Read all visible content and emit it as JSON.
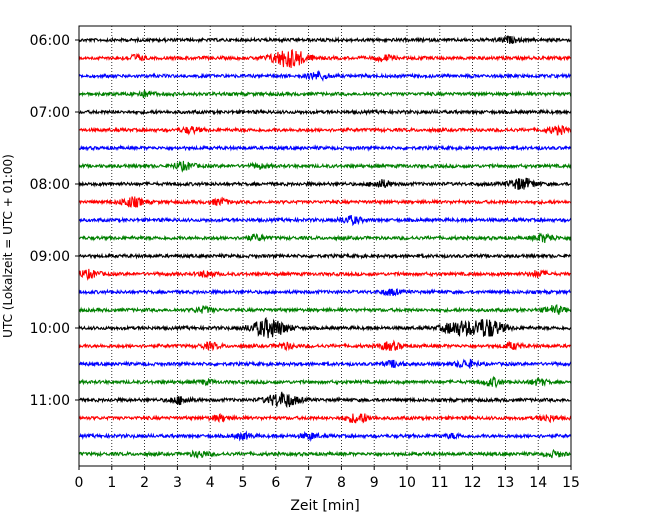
{
  "chart_data": {
    "type": "line",
    "title": "",
    "xlabel": "Zeit  [min]",
    "ylabel": "UTC (Lokalzeit = UTC + 01:00)",
    "xlim": [
      0,
      15
    ],
    "x_ticks": [
      "0",
      "1",
      "2",
      "3",
      "4",
      "5",
      "6",
      "7",
      "8",
      "9",
      "10",
      "11",
      "12",
      "13",
      "14",
      "15"
    ],
    "y_ticks": [
      "06:00",
      "07:00",
      "08:00",
      "09:00",
      "10:00",
      "11:00"
    ],
    "grid": "vertical-dotted",
    "trace_interval_min": 15,
    "colors": [
      "#000000",
      "#ff0000",
      "#0000ff",
      "#008000"
    ],
    "series": [
      {
        "time": "06:00",
        "color": "#000000",
        "events": [
          [
            13.1,
            0.3
          ]
        ]
      },
      {
        "time": "06:15",
        "color": "#ff0000",
        "events": [
          [
            1.7,
            0.3
          ],
          [
            6.4,
            1.0
          ],
          [
            9.3,
            0.3
          ]
        ]
      },
      {
        "time": "06:30",
        "color": "#0000ff",
        "events": [
          [
            7.3,
            0.4
          ]
        ]
      },
      {
        "time": "06:45",
        "color": "#008000",
        "events": [
          [
            2.0,
            0.3
          ]
        ]
      },
      {
        "time": "07:00",
        "color": "#000000",
        "events": []
      },
      {
        "time": "07:15",
        "color": "#ff0000",
        "events": [
          [
            3.4,
            0.3
          ],
          [
            14.6,
            0.4
          ]
        ]
      },
      {
        "time": "07:30",
        "color": "#0000ff",
        "events": []
      },
      {
        "time": "07:45",
        "color": "#008000",
        "events": [
          [
            3.2,
            0.4
          ],
          [
            5.5,
            0.2
          ]
        ]
      },
      {
        "time": "08:00",
        "color": "#000000",
        "events": [
          [
            9.2,
            0.4
          ],
          [
            13.5,
            0.6
          ]
        ]
      },
      {
        "time": "08:15",
        "color": "#ff0000",
        "events": [
          [
            1.6,
            0.5
          ],
          [
            4.3,
            0.3
          ]
        ]
      },
      {
        "time": "08:30",
        "color": "#0000ff",
        "events": [
          [
            8.3,
            0.4
          ]
        ]
      },
      {
        "time": "08:45",
        "color": "#008000",
        "events": [
          [
            5.4,
            0.3
          ],
          [
            14.2,
            0.4
          ]
        ]
      },
      {
        "time": "09:00",
        "color": "#000000",
        "events": []
      },
      {
        "time": "09:15",
        "color": "#ff0000",
        "events": [
          [
            0.3,
            0.4
          ],
          [
            3.9,
            0.3
          ],
          [
            14.0,
            0.3
          ]
        ]
      },
      {
        "time": "09:30",
        "color": "#0000ff",
        "events": [
          [
            9.5,
            0.3
          ]
        ]
      },
      {
        "time": "09:45",
        "color": "#008000",
        "events": [
          [
            3.8,
            0.3
          ],
          [
            14.5,
            0.4
          ]
        ]
      },
      {
        "time": "10:00",
        "color": "#000000",
        "events": [
          [
            5.8,
            1.0
          ],
          [
            11.5,
            0.7
          ],
          [
            12.4,
            1.0
          ]
        ]
      },
      {
        "time": "10:15",
        "color": "#ff0000",
        "events": [
          [
            4.0,
            0.3
          ],
          [
            6.3,
            0.3
          ],
          [
            9.5,
            0.4
          ],
          [
            13.2,
            0.3
          ]
        ]
      },
      {
        "time": "10:30",
        "color": "#0000ff",
        "events": [
          [
            9.6,
            0.3
          ],
          [
            11.8,
            0.4
          ]
        ]
      },
      {
        "time": "10:45",
        "color": "#008000",
        "events": [
          [
            3.9,
            0.2
          ],
          [
            12.6,
            0.4
          ],
          [
            14.0,
            0.3
          ]
        ]
      },
      {
        "time": "11:00",
        "color": "#000000",
        "events": [
          [
            3.1,
            0.4
          ],
          [
            6.2,
            0.8
          ]
        ]
      },
      {
        "time": "11:15",
        "color": "#ff0000",
        "events": [
          [
            4.3,
            0.3
          ],
          [
            8.5,
            0.5
          ],
          [
            14.3,
            0.3
          ]
        ]
      },
      {
        "time": "11:30",
        "color": "#0000ff",
        "events": [
          [
            5.0,
            0.3
          ],
          [
            7.0,
            0.3
          ],
          [
            11.4,
            0.2
          ]
        ]
      },
      {
        "time": "11:45",
        "color": "#008000",
        "events": [
          [
            3.7,
            0.3
          ],
          [
            14.5,
            0.3
          ]
        ]
      }
    ]
  }
}
